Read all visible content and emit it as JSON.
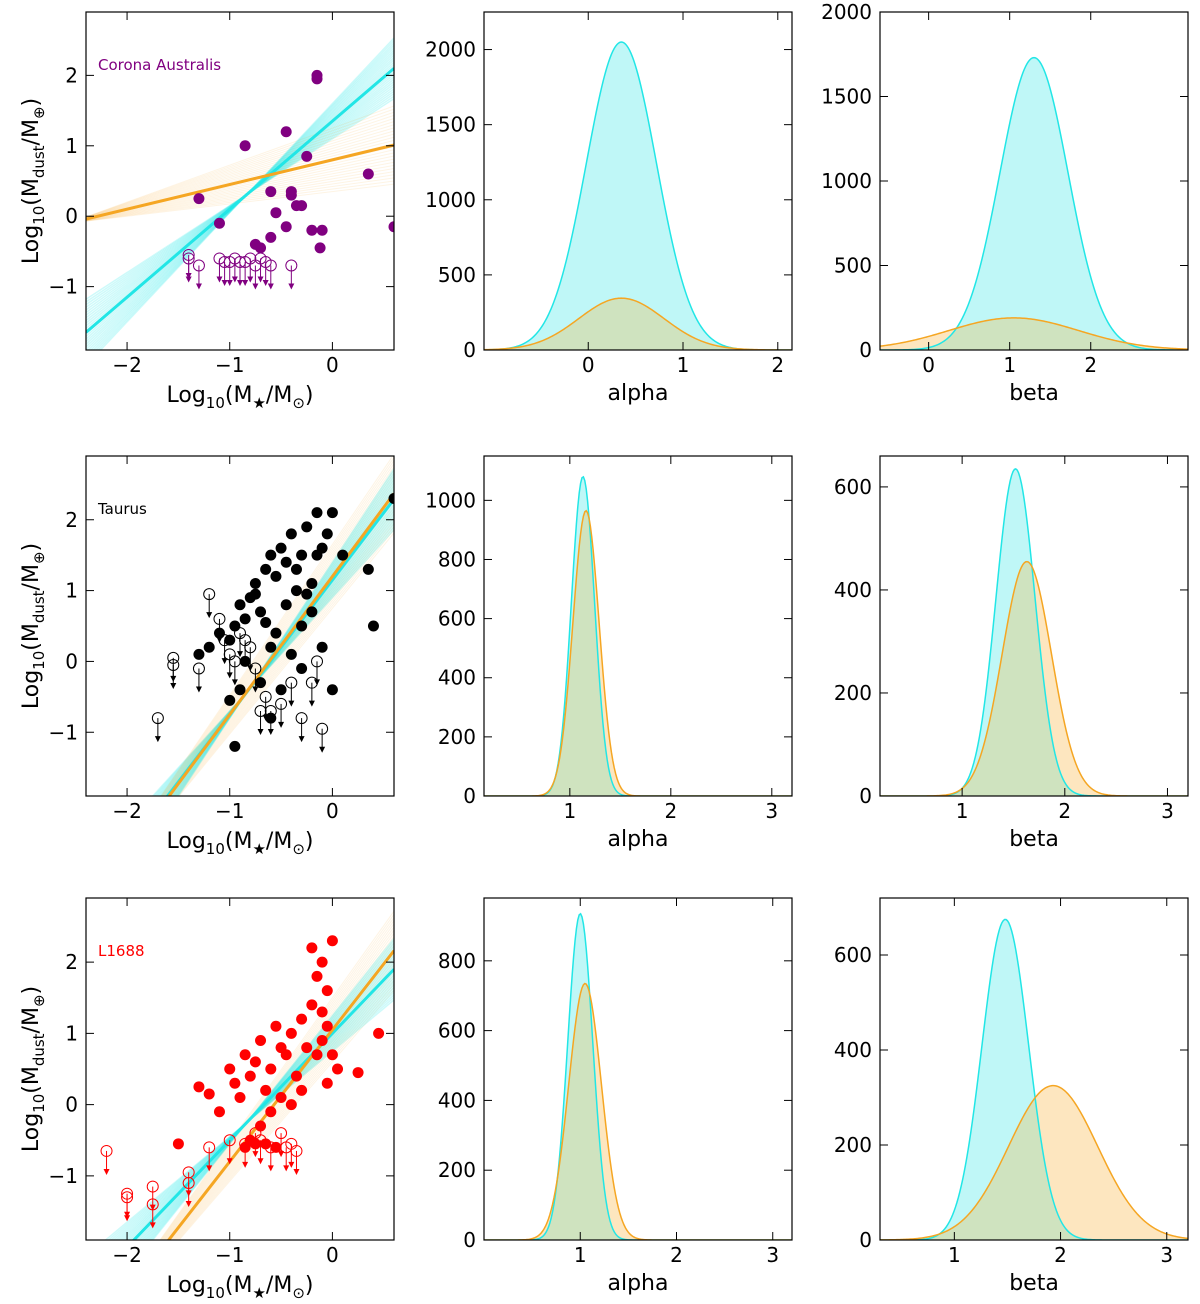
{
  "colors": {
    "cyan": "#22e6e6",
    "cyan_fill": "#bff7f7",
    "orange": "#f5a623",
    "orange_fill": "#fde6bf",
    "green_overlap": "#cfe3bf"
  },
  "chart_data": [
    {
      "id": "ca-scatter",
      "type": "scatter",
      "row": 0,
      "col": 0,
      "region": "Corona Australis",
      "region_color": "#800080",
      "xlabel_main": "Log",
      "xlabel_sub": "10",
      "xlabel_tail": "(M",
      "xlabel_sub2": "★",
      "xlabel_end": "/M",
      "xlabel_sub3": "⊙",
      "xlabel_close": ")",
      "ylabel_main": "Log",
      "ylabel_sub": "10",
      "ylabel_tail": "(M",
      "ylabel_sub2": "dust",
      "ylabel_end": "/M",
      "ylabel_sub3": "⊕",
      "ylabel_close": ")",
      "xlim": [
        -2.4,
        0.6
      ],
      "ylim": [
        -1.9,
        2.9
      ],
      "xticks": [
        -2,
        -1,
        0
      ],
      "xtick_labels": [
        "−2",
        "−1",
        "0"
      ],
      "yticks": [
        -1,
        0,
        1,
        2
      ],
      "ytick_labels": [
        "−1",
        "0",
        "1",
        "2"
      ],
      "fit_orange": {
        "alpha": 0.35,
        "beta": 0.8
      },
      "fit_cyan": {
        "alpha": 1.25,
        "beta": 1.35
      },
      "detections": [
        [
          -1.3,
          0.25
        ],
        [
          -1.1,
          -0.1
        ],
        [
          -0.85,
          1.0
        ],
        [
          -0.6,
          0.35
        ],
        [
          -0.45,
          1.2
        ],
        [
          -0.4,
          0.35
        ],
        [
          -0.4,
          0.3
        ],
        [
          -0.25,
          0.85
        ],
        [
          -0.15,
          1.95
        ],
        [
          -0.15,
          2.0
        ],
        [
          -0.2,
          -0.2
        ],
        [
          -0.12,
          -0.45
        ],
        [
          -0.3,
          0.15
        ],
        [
          -0.45,
          -0.15
        ],
        [
          -0.55,
          0.05
        ],
        [
          -0.7,
          -0.45
        ],
        [
          -0.75,
          -0.4
        ],
        [
          -0.6,
          -0.3
        ],
        [
          -0.1,
          -0.2
        ],
        [
          0.35,
          0.6
        ],
        [
          0.6,
          -0.15
        ],
        [
          -0.35,
          0.15
        ]
      ],
      "upper_limits": [
        [
          -1.4,
          -0.55
        ],
        [
          -1.4,
          -0.6
        ],
        [
          -1.3,
          -0.7
        ],
        [
          -1.1,
          -0.6
        ],
        [
          -1.05,
          -0.65
        ],
        [
          -1.0,
          -0.65
        ],
        [
          -0.95,
          -0.6
        ],
        [
          -0.9,
          -0.65
        ],
        [
          -0.85,
          -0.65
        ],
        [
          -0.8,
          -0.6
        ],
        [
          -0.75,
          -0.7
        ],
        [
          -0.7,
          -0.6
        ],
        [
          -0.65,
          -0.65
        ],
        [
          -0.6,
          -0.7
        ],
        [
          -0.4,
          -0.7
        ]
      ]
    },
    {
      "id": "ca-alpha",
      "type": "histogram",
      "row": 0,
      "col": 1,
      "xlabel": "alpha",
      "xlim": [
        -1.1,
        2.15
      ],
      "ylim": [
        0,
        2250
      ],
      "xticks": [
        0,
        1,
        2
      ],
      "xtick_labels": [
        "0",
        "1",
        "2"
      ],
      "yticks": [
        0,
        500,
        1000,
        1500,
        2000
      ],
      "ytick_labels": [
        "0",
        "500",
        "1000",
        "1500",
        "2000"
      ],
      "series": [
        {
          "name": "cyan",
          "mu": 0.35,
          "sigma": 0.37,
          "peak": 2050
        },
        {
          "name": "orange",
          "mu": 0.35,
          "sigma": 0.45,
          "peak": 345
        }
      ]
    },
    {
      "id": "ca-beta",
      "type": "histogram",
      "row": 0,
      "col": 2,
      "xlabel": "beta",
      "xlim": [
        -0.6,
        3.2
      ],
      "ylim": [
        0,
        2000
      ],
      "xticks": [
        0,
        1,
        2
      ],
      "xtick_labels": [
        "0",
        "1",
        "2"
      ],
      "yticks": [
        0,
        500,
        1000,
        1500,
        2000
      ],
      "ytick_labels": [
        "0",
        "500",
        "1000",
        "1500",
        "2000"
      ],
      "series": [
        {
          "name": "cyan",
          "mu": 1.3,
          "sigma": 0.42,
          "peak": 1730
        },
        {
          "name": "orange",
          "mu": 1.05,
          "sigma": 0.8,
          "peak": 190
        }
      ]
    },
    {
      "id": "tau-scatter",
      "type": "scatter",
      "row": 1,
      "col": 0,
      "region": "Taurus",
      "region_color": "#000000",
      "xlabel_main": "Log",
      "xlabel_sub": "10",
      "xlabel_tail": "(M",
      "xlabel_sub2": "★",
      "xlabel_end": "/M",
      "xlabel_sub3": "⊙",
      "xlabel_close": ")",
      "ylabel_main": "Log",
      "ylabel_sub": "10",
      "ylabel_tail": "(M",
      "ylabel_sub2": "dust",
      "ylabel_end": "/M",
      "ylabel_sub3": "⊕",
      "ylabel_close": ")",
      "xlim": [
        -2.4,
        0.6
      ],
      "ylim": [
        -1.9,
        2.9
      ],
      "xticks": [
        -2,
        -1,
        0
      ],
      "xtick_labels": [
        "−2",
        "−1",
        "0"
      ],
      "yticks": [
        -1,
        0,
        1,
        2
      ],
      "ytick_labels": [
        "−1",
        "0",
        "1",
        "2"
      ],
      "fit_orange": {
        "alpha": 1.95,
        "beta": 1.2
      },
      "fit_cyan": {
        "alpha": 1.9,
        "beta": 1.15
      },
      "detections": [
        [
          -1.3,
          0.1
        ],
        [
          -1.2,
          0.2
        ],
        [
          -1.1,
          0.4
        ],
        [
          -1.0,
          0.3
        ],
        [
          -0.95,
          0.5
        ],
        [
          -0.9,
          0.8
        ],
        [
          -0.85,
          0.6
        ],
        [
          -0.8,
          0.9
        ],
        [
          -0.75,
          1.1
        ],
        [
          -0.7,
          0.7
        ],
        [
          -0.65,
          1.3
        ],
        [
          -0.6,
          1.5
        ],
        [
          -0.55,
          1.2
        ],
        [
          -0.5,
          1.6
        ],
        [
          -0.45,
          1.4
        ],
        [
          -0.4,
          1.8
        ],
        [
          -0.35,
          1.3
        ],
        [
          -0.3,
          1.5
        ],
        [
          -0.25,
          1.9
        ],
        [
          -0.2,
          1.1
        ],
        [
          -0.15,
          2.1
        ],
        [
          -0.1,
          1.6
        ],
        [
          -0.05,
          1.8
        ],
        [
          0.0,
          2.1
        ],
        [
          0.35,
          1.3
        ],
        [
          0.6,
          2.3
        ],
        [
          -0.9,
          -0.4
        ],
        [
          -0.85,
          0.0
        ],
        [
          -0.7,
          -0.3
        ],
        [
          -0.6,
          0.2
        ],
        [
          -0.5,
          -0.4
        ],
        [
          -0.4,
          0.1
        ],
        [
          -0.3,
          0.5
        ],
        [
          -0.2,
          0.7
        ],
        [
          -0.1,
          0.2
        ],
        [
          0.0,
          -0.4
        ],
        [
          0.4,
          0.5
        ],
        [
          -0.95,
          -1.2
        ],
        [
          -0.6,
          -0.8
        ],
        [
          -0.75,
          0.95
        ],
        [
          -0.55,
          0.4
        ],
        [
          -0.45,
          0.8
        ],
        [
          -0.35,
          1.0
        ],
        [
          -0.15,
          1.5
        ],
        [
          -0.65,
          0.55
        ],
        [
          -0.25,
          0.95
        ],
        [
          0.1,
          1.5
        ],
        [
          -1.0,
          -0.55
        ],
        [
          -0.3,
          -0.1
        ]
      ],
      "upper_limits": [
        [
          -1.7,
          -0.8
        ],
        [
          -1.55,
          0.05
        ],
        [
          -1.55,
          -0.05
        ],
        [
          -1.3,
          -0.1
        ],
        [
          -1.2,
          0.95
        ],
        [
          -1.1,
          0.6
        ],
        [
          -1.05,
          0.3
        ],
        [
          -1.0,
          0.1
        ],
        [
          -0.95,
          0.0
        ],
        [
          -0.9,
          0.4
        ],
        [
          -0.85,
          0.3
        ],
        [
          -0.8,
          0.2
        ],
        [
          -0.75,
          -0.1
        ],
        [
          -0.7,
          -0.7
        ],
        [
          -0.65,
          -0.5
        ],
        [
          -0.6,
          -0.7
        ],
        [
          -0.5,
          -0.6
        ],
        [
          -0.4,
          -0.3
        ],
        [
          -0.3,
          -0.8
        ],
        [
          -0.2,
          -0.3
        ],
        [
          -0.1,
          -0.95
        ],
        [
          -0.15,
          0.0
        ]
      ]
    },
    {
      "id": "tau-alpha",
      "type": "histogram",
      "row": 1,
      "col": 1,
      "xlabel": "alpha",
      "xlim": [
        0.15,
        3.2
      ],
      "ylim": [
        0,
        1150
      ],
      "xticks": [
        1,
        2,
        3
      ],
      "xtick_labels": [
        "1",
        "2",
        "3"
      ],
      "yticks": [
        0,
        200,
        400,
        600,
        800,
        1000
      ],
      "ytick_labels": [
        "0",
        "200",
        "400",
        "600",
        "800",
        "1000"
      ],
      "series": [
        {
          "name": "cyan",
          "mu": 1.13,
          "sigma": 0.115,
          "peak": 1080
        },
        {
          "name": "orange",
          "mu": 1.16,
          "sigma": 0.13,
          "peak": 965
        }
      ]
    },
    {
      "id": "tau-beta",
      "type": "histogram",
      "row": 1,
      "col": 2,
      "xlabel": "beta",
      "xlim": [
        0.2,
        3.2
      ],
      "ylim": [
        0,
        660
      ],
      "xticks": [
        1,
        2,
        3
      ],
      "xtick_labels": [
        "1",
        "2",
        "3"
      ],
      "yticks": [
        0,
        200,
        400,
        600
      ],
      "ytick_labels": [
        "0",
        "200",
        "400",
        "600"
      ],
      "series": [
        {
          "name": "cyan",
          "mu": 1.52,
          "sigma": 0.19,
          "peak": 635
        },
        {
          "name": "orange",
          "mu": 1.63,
          "sigma": 0.24,
          "peak": 455
        }
      ]
    },
    {
      "id": "l1688-scatter",
      "type": "scatter",
      "row": 2,
      "col": 0,
      "region": "L1688",
      "region_color": "#ff0000",
      "xlabel_main": "Log",
      "xlabel_sub": "10",
      "xlabel_tail": "(M",
      "xlabel_sub2": "★",
      "xlabel_end": "/M",
      "xlabel_sub3": "⊙",
      "xlabel_close": ")",
      "ylabel_main": "Log",
      "ylabel_sub": "10",
      "ylabel_tail": "(M",
      "ylabel_sub2": "dust",
      "ylabel_end": "/M",
      "ylabel_sub3": "⊕",
      "ylabel_close": ")",
      "xlim": [
        -2.4,
        0.6
      ],
      "ylim": [
        -1.9,
        2.9
      ],
      "xticks": [
        -2,
        -1,
        0
      ],
      "xtick_labels": [
        "−2",
        "−1",
        "0"
      ],
      "yticks": [
        -1,
        0,
        1,
        2
      ],
      "ytick_labels": [
        "−1",
        "0",
        "1",
        "2"
      ],
      "fit_orange": {
        "alpha": 1.85,
        "beta": 1.05
      },
      "fit_cyan": {
        "alpha": 1.5,
        "beta": 1.0
      },
      "detections": [
        [
          -1.5,
          -0.55
        ],
        [
          -1.3,
          0.25
        ],
        [
          -1.2,
          0.15
        ],
        [
          -1.1,
          -0.1
        ],
        [
          -1.0,
          0.5
        ],
        [
          -0.95,
          0.3
        ],
        [
          -0.9,
          0.1
        ],
        [
          -0.85,
          0.7
        ],
        [
          -0.8,
          0.4
        ],
        [
          -0.75,
          0.6
        ],
        [
          -0.7,
          0.9
        ],
        [
          -0.65,
          0.2
        ],
        [
          -0.6,
          0.5
        ],
        [
          -0.55,
          1.1
        ],
        [
          -0.5,
          0.8
        ],
        [
          -0.45,
          0.7
        ],
        [
          -0.4,
          1.0
        ],
        [
          -0.35,
          0.4
        ],
        [
          -0.3,
          1.2
        ],
        [
          -0.25,
          0.8
        ],
        [
          -0.2,
          2.2
        ],
        [
          -0.15,
          1.8
        ],
        [
          -0.1,
          2.0
        ],
        [
          -0.05,
          1.6
        ],
        [
          0.0,
          2.3
        ],
        [
          0.0,
          0.7
        ],
        [
          -0.1,
          1.3
        ],
        [
          -0.2,
          1.4
        ],
        [
          -0.05,
          0.3
        ],
        [
          0.05,
          0.5
        ],
        [
          0.25,
          0.45
        ],
        [
          0.45,
          1.0
        ],
        [
          -0.3,
          0.2
        ],
        [
          -0.4,
          0.0
        ],
        [
          -0.5,
          0.1
        ],
        [
          -0.6,
          -0.1
        ],
        [
          -0.7,
          -0.3
        ],
        [
          -0.8,
          -0.5
        ],
        [
          -0.85,
          -0.6
        ],
        [
          -0.75,
          -0.55
        ],
        [
          -0.65,
          -0.55
        ],
        [
          -0.55,
          -0.6
        ],
        [
          -0.15,
          0.7
        ],
        [
          -0.1,
          0.9
        ],
        [
          -0.05,
          1.1
        ]
      ],
      "upper_limits": [
        [
          -2.2,
          -0.65
        ],
        [
          -2.0,
          -1.25
        ],
        [
          -2.0,
          -1.3
        ],
        [
          -1.75,
          -1.15
        ],
        [
          -1.75,
          -1.4
        ],
        [
          -1.4,
          -0.95
        ],
        [
          -1.4,
          -1.1
        ],
        [
          -1.2,
          -0.6
        ],
        [
          -1.0,
          -0.5
        ],
        [
          -0.85,
          -0.55
        ],
        [
          -0.75,
          -0.4
        ],
        [
          -0.7,
          -0.5
        ],
        [
          -0.6,
          -0.6
        ],
        [
          -0.5,
          -0.4
        ],
        [
          -0.45,
          -0.6
        ],
        [
          -0.4,
          -0.55
        ],
        [
          -0.35,
          -0.65
        ]
      ]
    },
    {
      "id": "l1688-alpha",
      "type": "histogram",
      "row": 2,
      "col": 1,
      "xlabel": "alpha",
      "xlim": [
        0.0,
        3.2
      ],
      "ylim": [
        0,
        980
      ],
      "xticks": [
        1,
        2,
        3
      ],
      "xtick_labels": [
        "1",
        "2",
        "3"
      ],
      "yticks": [
        0,
        200,
        400,
        600,
        800
      ],
      "ytick_labels": [
        "0",
        "200",
        "400",
        "600",
        "800"
      ],
      "series": [
        {
          "name": "cyan",
          "mu": 1.0,
          "sigma": 0.13,
          "peak": 935
        },
        {
          "name": "orange",
          "mu": 1.05,
          "sigma": 0.17,
          "peak": 735
        }
      ]
    },
    {
      "id": "l1688-beta",
      "type": "histogram",
      "row": 2,
      "col": 2,
      "xlabel": "beta",
      "xlim": [
        0.3,
        3.2
      ],
      "ylim": [
        0,
        720
      ],
      "xticks": [
        1,
        2,
        3
      ],
      "xtick_labels": [
        "1",
        "2",
        "3"
      ],
      "yticks": [
        0,
        200,
        400,
        600
      ],
      "ytick_labels": [
        "0",
        "200",
        "400",
        "600"
      ],
      "series": [
        {
          "name": "cyan",
          "mu": 1.48,
          "sigma": 0.22,
          "peak": 675
        },
        {
          "name": "orange",
          "mu": 1.93,
          "sigma": 0.42,
          "peak": 325
        }
      ]
    }
  ]
}
